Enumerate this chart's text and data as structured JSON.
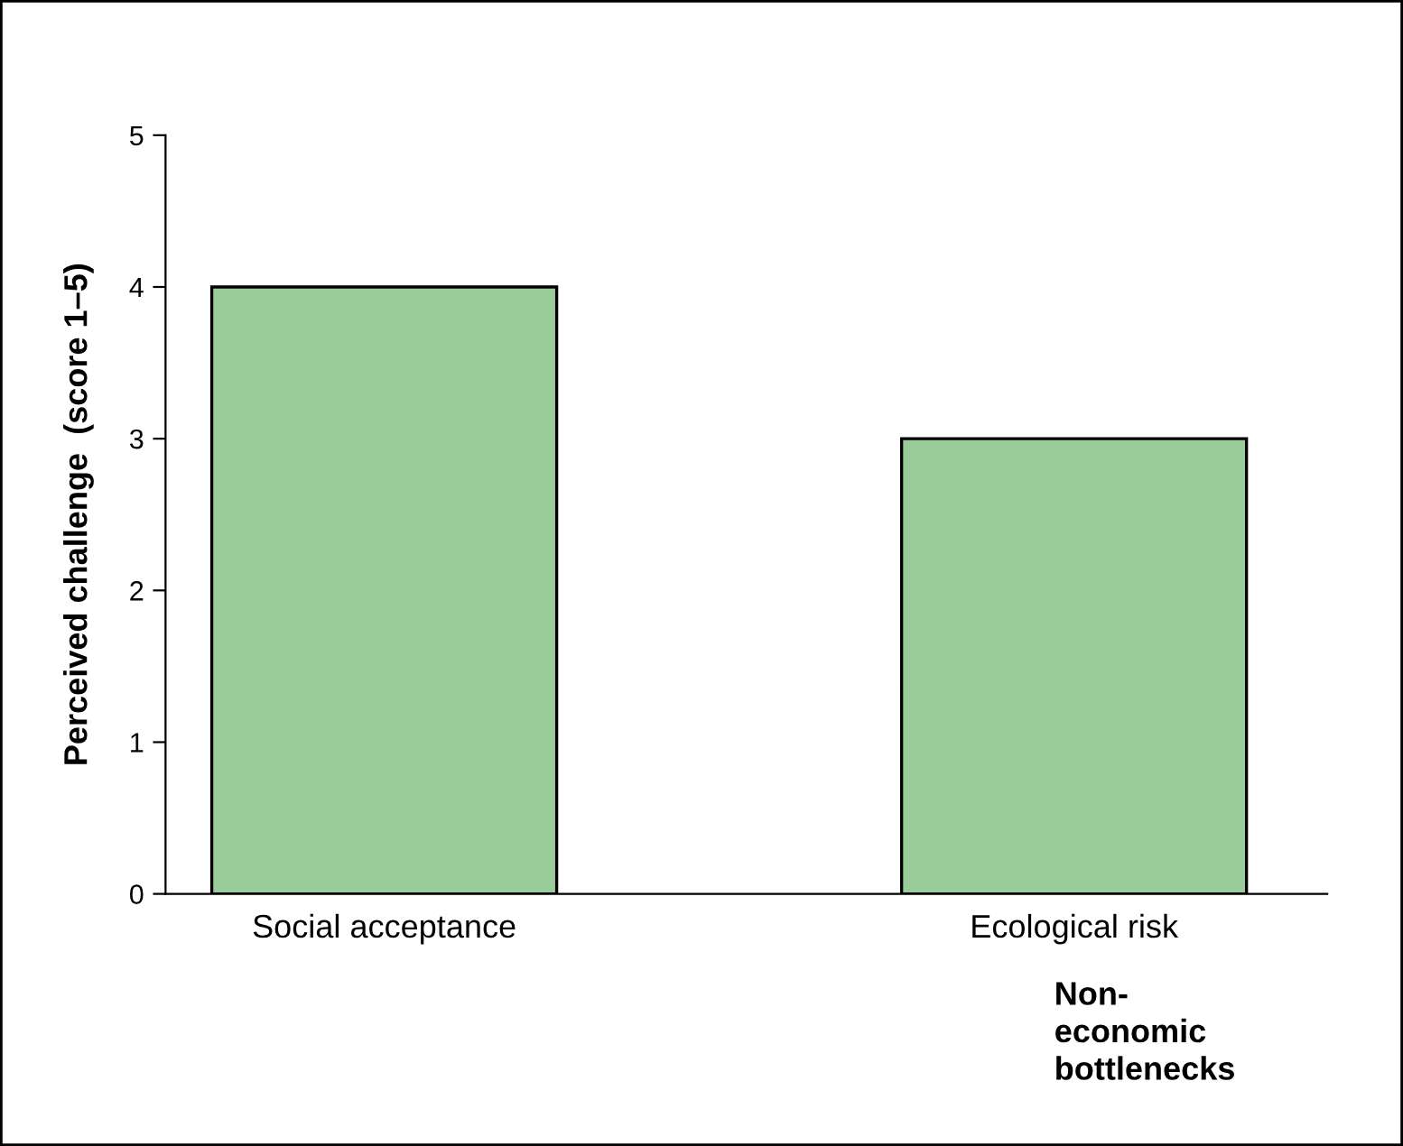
{
  "chart_data": {
    "type": "bar",
    "categories": [
      "Social acceptance",
      "Ecological risk"
    ],
    "values": [
      4,
      3
    ],
    "color": "#99cc99",
    "xlabel": "Non-economic bottlenecks",
    "ylabel": "Perceived challenge  (score 1–5)",
    "ylim": [
      0,
      5
    ],
    "yticks": [
      0,
      1,
      2,
      3,
      4,
      5
    ],
    "grid": false,
    "legend": false
  }
}
